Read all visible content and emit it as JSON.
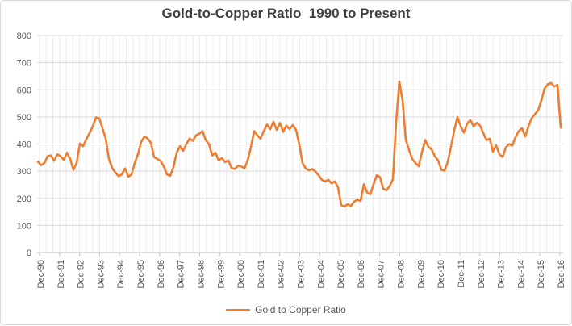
{
  "chart_data": {
    "type": "line",
    "title": "Gold-to-Copper Ratio  1990 to Present",
    "xlabel": "",
    "ylabel": "",
    "ylim": [
      0,
      800
    ],
    "y_tick_interval": 100,
    "y_tick_labels": [
      "0",
      "100",
      "200",
      "300",
      "400",
      "500",
      "600",
      "700",
      "800"
    ],
    "x_tick_labels": [
      "Dec-90",
      "Dec-91",
      "Dec-92",
      "Dec-93",
      "Dec-94",
      "Dec-95",
      "Dec-96",
      "Dec-97",
      "Dec-98",
      "Dec-99",
      "Dec-00",
      "Dec-01",
      "Dec-02",
      "Dec-03",
      "Dec-04",
      "Dec-05",
      "Dec-06",
      "Dec-07",
      "Dec-08",
      "Dec-09",
      "Dec-10",
      "Dec-11",
      "Dec-12",
      "Dec-13",
      "Dec-14",
      "Dec-15",
      "Dec-16"
    ],
    "grid": {
      "horizontal_major": true,
      "vertical_minor": true,
      "minor_lines_per_year": 3
    },
    "legend_position": "bottom",
    "series": [
      {
        "name": "Gold to Copper Ratio",
        "color": "#ED7D31",
        "x_start": "Dec-90",
        "x_end": "Dec-16",
        "values": [
          335,
          322,
          330,
          355,
          358,
          338,
          362,
          355,
          342,
          368,
          345,
          305,
          330,
          402,
          392,
          418,
          440,
          465,
          498,
          495,
          458,
          420,
          345,
          312,
          295,
          282,
          288,
          310,
          280,
          288,
          330,
          362,
          408,
          428,
          420,
          405,
          352,
          345,
          338,
          318,
          288,
          283,
          315,
          368,
          392,
          375,
          400,
          420,
          412,
          432,
          438,
          448,
          415,
          400,
          358,
          368,
          340,
          348,
          333,
          340,
          312,
          308,
          320,
          318,
          310,
          340,
          388,
          448,
          432,
          420,
          448,
          472,
          455,
          482,
          452,
          478,
          445,
          468,
          455,
          470,
          452,
          398,
          330,
          310,
          303,
          308,
          298,
          285,
          268,
          262,
          268,
          255,
          262,
          240,
          175,
          170,
          178,
          172,
          188,
          195,
          190,
          252,
          222,
          215,
          252,
          285,
          278,
          235,
          230,
          245,
          270,
          480,
          630,
          560,
          415,
          378,
          345,
          330,
          318,
          370,
          415,
          390,
          380,
          355,
          340,
          305,
          302,
          335,
          390,
          450,
          500,
          465,
          442,
          475,
          488,
          465,
          478,
          468,
          440,
          415,
          420,
          372,
          395,
          362,
          352,
          388,
          400,
          395,
          425,
          448,
          458,
          428,
          465,
          495,
          510,
          525,
          560,
          605,
          620,
          625,
          612,
          618,
          460
        ]
      }
    ],
    "annotations": {
      "peak_2008": 630,
      "peak_2016": 625,
      "low_2006": 170
    },
    "colors": {
      "line": "#ED7D31",
      "grid_major": "#D9D9D9",
      "grid_minor": "#ECECEC",
      "axis": "#BFBFBF",
      "tick_text": "#595959",
      "title_text": "#404040",
      "frame_border": "#D9D9D9",
      "background": "#FFFFFF"
    }
  }
}
